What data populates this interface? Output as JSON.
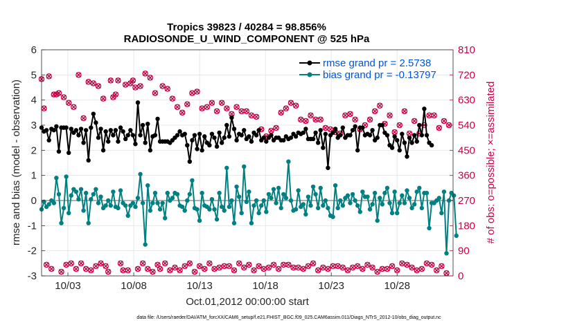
{
  "chart_data": {
    "type": "line",
    "title": "Tropics 39823 / 40284 = 98.856%",
    "subtitle": "RADIOSONDE_U_WIND_COMPONENT @ 525 hPa",
    "xlabel": "Oct.01,2012 00:00:00 start",
    "ylabel": "rmse and bias (model - observation)",
    "y2label": "# of obs: o=possible; ×=assimilated",
    "footnote": "data file: /Users/raeder/DAI/ATM_forcXX/CAM6_setup/f.e21.FHIST_BGC.f09_025.CAM6assim.011/Diags_NTrS_2012-10/obs_diag_output.nc",
    "xlim": [
      1.0,
      32.25
    ],
    "ylim": [
      -3,
      6
    ],
    "y2lim": [
      0,
      810
    ],
    "x_ticks": [
      3,
      8,
      13,
      18,
      23,
      28
    ],
    "x_tick_labels": [
      "10/03",
      "10/08",
      "10/13",
      "10/18",
      "10/23",
      "10/28"
    ],
    "y_ticks": [
      -3,
      -2,
      -1,
      0,
      1,
      2,
      3,
      4,
      5,
      6
    ],
    "y_tick_labels": [
      "-3",
      "-2",
      "-1",
      "0",
      "1",
      "2",
      "3",
      "4",
      "5",
      "6"
    ],
    "y2_ticks": [
      0,
      90,
      180,
      270,
      360,
      450,
      540,
      630,
      720,
      810
    ],
    "y2_tick_labels": [
      "0",
      "90",
      "180",
      "270",
      "360",
      "450",
      "540",
      "630",
      "720",
      "810"
    ],
    "grid": true,
    "legend_position": "top-right",
    "colors": {
      "rmse": "#000000",
      "bias": "#008080",
      "obs": "#cc0044",
      "zero": "#b0b0b0",
      "grid": "#e3e3e3",
      "legend_text": "#0055dd"
    },
    "series": [
      {
        "name": "rmse grand pr = 2.5738",
        "color": "#000000",
        "values": [
          2.9,
          2.75,
          2.8,
          2.4,
          2.85,
          2.8,
          2.95,
          1.95,
          2.9,
          2.9,
          2.9,
          1.9,
          2.85,
          2.7,
          2.8,
          2.6,
          2.85,
          2.3,
          2.8,
          1.6,
          2.9,
          3.45,
          3.1,
          2.5,
          2.85,
          2.0,
          2.75,
          2.35,
          2.8,
          2.6,
          2.8,
          2.35,
          2.9,
          2.75,
          2.45,
          2.6,
          2.8,
          2.6,
          2.25,
          3.9,
          2.6,
          3.0,
          2.3,
          3.05,
          2.0,
          2.55,
          2.6,
          3.25,
          2.35,
          2.35,
          2.35,
          2.35,
          2.3,
          2.4,
          2.5,
          2.6,
          2.75,
          2.6,
          2.65,
          2.2,
          1.55,
          2.4,
          2.6,
          2.05,
          2.65,
          2.0,
          2.55,
          2.3,
          2.2,
          2.65,
          2.5,
          2.15,
          2.7,
          2.3,
          2.5,
          3.0,
          2.55,
          3.3,
          2.85,
          2.4,
          2.65,
          2.6,
          2.8,
          2.45,
          2.55,
          2.35,
          2.7,
          2.6,
          2.8,
          2.4,
          2.5,
          2.35,
          2.5,
          2.6,
          2.4,
          2.5,
          2.5,
          2.4,
          2.4,
          2.55,
          2.45,
          2.5,
          2.65,
          2.55,
          2.7,
          2.65,
          2.7,
          2.85,
          2.45,
          2.45,
          2.45,
          2.7,
          2.3,
          2.8,
          2.1,
          2.65,
          1.3,
          2.6,
          2.7,
          2.85,
          2.5,
          2.6,
          2.9,
          2.5,
          2.6,
          2.6,
          2.8,
          2.95,
          2.0,
          2.9,
          2.9,
          2.6,
          2.65,
          2.6,
          2.8,
          2.4,
          2.5,
          3.0,
          3.0,
          2.7,
          2.6,
          2.2,
          2.1,
          2.55,
          2.4,
          2.0,
          2.65,
          2.3,
          1.75,
          2.5,
          2.3,
          2.6,
          2.35,
          3.0,
          2.6,
          3.65,
          2.6,
          2.3,
          2.2
        ]
      },
      {
        "name": "bias grand pr = -0.13797",
        "color": "#008080",
        "values": [
          -0.35,
          -0.05,
          -0.25,
          -0.15,
          0.0,
          -0.1,
          0.9,
          0.25,
          -0.9,
          -0.3,
          0.95,
          -0.5,
          0.2,
          0.45,
          0.35,
          0.05,
          0.45,
          -0.4,
          0.3,
          -0.9,
          0.05,
          0.25,
          0.45,
          -0.1,
          0.15,
          -0.3,
          -0.2,
          0.0,
          -0.2,
          0.35,
          -0.25,
          -0.3,
          0.4,
          -0.1,
          -0.2,
          -0.6,
          -0.2,
          -0.1,
          -0.25,
          0.1,
          1.05,
          -0.1,
          -1.75,
          0.6,
          -0.4,
          -0.1,
          0.3,
          -0.1,
          -0.35,
          -0.1,
          -0.7,
          0.3,
          0.0,
          0.1,
          0.3,
          0.25,
          -0.2,
          -0.25,
          -0.4,
          0.0,
          0.25,
          0.8,
          -0.3,
          -0.35,
          -0.8,
          0.3,
          -0.2,
          -0.25,
          -0.35,
          0.05,
          -0.35,
          -0.75,
          0.3,
          -0.25,
          -0.4,
          1.3,
          -0.25,
          0.0,
          -0.9,
          0.55,
          0.15,
          -0.5,
          1.35,
          -0.05,
          0.35,
          -0.9,
          -0.2,
          0.0,
          -0.5,
          -0.2,
          0.0,
          -0.45,
          0.25,
          0.1,
          0.45,
          -0.1,
          0.5,
          -0.3,
          0.25,
          0.1,
          1.55,
          0.0,
          -0.4,
          -0.35,
          0.4,
          -0.25,
          -0.15,
          -0.55,
          0.15,
          -0.2,
          0.55,
          0.25,
          -0.3,
          0.5,
          -0.2,
          0.0,
          -0.3,
          -0.6,
          -0.65,
          0.6,
          -0.3,
          0.0,
          -0.2,
          0.1,
          0.2,
          -0.1,
          0.25,
          0.0,
          -0.2,
          -0.45,
          0.35,
          0.15,
          0.15,
          -0.35,
          -0.15,
          0.3,
          -0.8,
          0.1,
          -0.15,
          0.3,
          0.5,
          -0.1,
          -0.5,
          0.35,
          -0.5,
          -0.1,
          0.2,
          -0.1,
          0.4,
          0.1,
          -0.3,
          -0.15,
          0.35,
          0.5,
          -0.3,
          0.3,
          0.3,
          -1.1,
          -0.1,
          -0.1,
          0.0,
          0.1,
          -0.5,
          0.35,
          -2.1,
          0.0,
          0.3,
          0.2,
          -1.4
        ]
      },
      {
        "name": "obs possible",
        "color": "#cc0044",
        "values": [
          705,
          600,
          40,
          715,
          25,
          650,
          650,
          655,
          15,
          640,
          40,
          620,
          45,
          605,
          25,
          720,
          45,
          565,
          25,
          695,
          20,
          690,
          35,
          680,
          45,
          635,
          35,
          15,
          700,
          640,
          650,
          700,
          45,
          20,
          685,
          20,
          690,
          700,
          675,
          25,
          680,
          45,
          725,
          25,
          710,
          15,
          655,
          40,
          25,
          680,
          45,
          670,
          20,
          635,
          30,
          605,
          20,
          585,
          35,
          615,
          45,
          655,
          15,
          660,
          35,
          600,
          25,
          605,
          45,
          620,
          25,
          590,
          30,
          620,
          35,
          600,
          35,
          580,
          20,
          605,
          45,
          590,
          30,
          590,
          40,
          575,
          20,
          570,
          35,
          525,
          25,
          500,
          30,
          520,
          40,
          530,
          25,
          585,
          40,
          600,
          40,
          620,
          30,
          610,
          30,
          560,
          25,
          555,
          35,
          575,
          45,
          560,
          20,
          560,
          30,
          530,
          25,
          525,
          35,
          515,
          35,
          510,
          30,
          575,
          20,
          580,
          30,
          560,
          35,
          525,
          25,
          540,
          40,
          560,
          30,
          590,
          15,
          610,
          25,
          545,
          25,
          575,
          35,
          515,
          20,
          540,
          45,
          590,
          40,
          510,
          30,
          555,
          20,
          510,
          25,
          540,
          45,
          575,
          40,
          575,
          20,
          530,
          35,
          555,
          10,
          540
        ]
      },
      {
        "name": "obs assimilated",
        "color": "#cc0044",
        "values": [
          705,
          600,
          40,
          715,
          25,
          650,
          650,
          655,
          15,
          640,
          40,
          620,
          45,
          605,
          25,
          720,
          45,
          565,
          25,
          695,
          20,
          690,
          35,
          680,
          45,
          635,
          35,
          15,
          700,
          640,
          650,
          700,
          45,
          20,
          685,
          20,
          690,
          700,
          675,
          25,
          680,
          45,
          725,
          25,
          710,
          15,
          655,
          40,
          25,
          680,
          45,
          670,
          20,
          635,
          30,
          605,
          20,
          585,
          35,
          615,
          45,
          655,
          15,
          660,
          35,
          600,
          25,
          605,
          45,
          620,
          25,
          590,
          30,
          620,
          35,
          600,
          35,
          580,
          20,
          605,
          45,
          590,
          30,
          590,
          40,
          575,
          20,
          570,
          35,
          525,
          25,
          500,
          30,
          520,
          40,
          530,
          25,
          585,
          40,
          600,
          40,
          620,
          30,
          610,
          30,
          560,
          25,
          555,
          35,
          575,
          45,
          560,
          20,
          560,
          30,
          530,
          25,
          525,
          35,
          515,
          35,
          510,
          30,
          575,
          20,
          580,
          30,
          560,
          35,
          525,
          25,
          540,
          40,
          560,
          30,
          590,
          15,
          610,
          25,
          545,
          25,
          575,
          35,
          515,
          20,
          540,
          45,
          590,
          40,
          510,
          30,
          555,
          20,
          510,
          25,
          540,
          45,
          575,
          40,
          575,
          20,
          530,
          35,
          555,
          10,
          540
        ]
      }
    ],
    "x_start": 1.0,
    "x_step": 0.1875
  }
}
